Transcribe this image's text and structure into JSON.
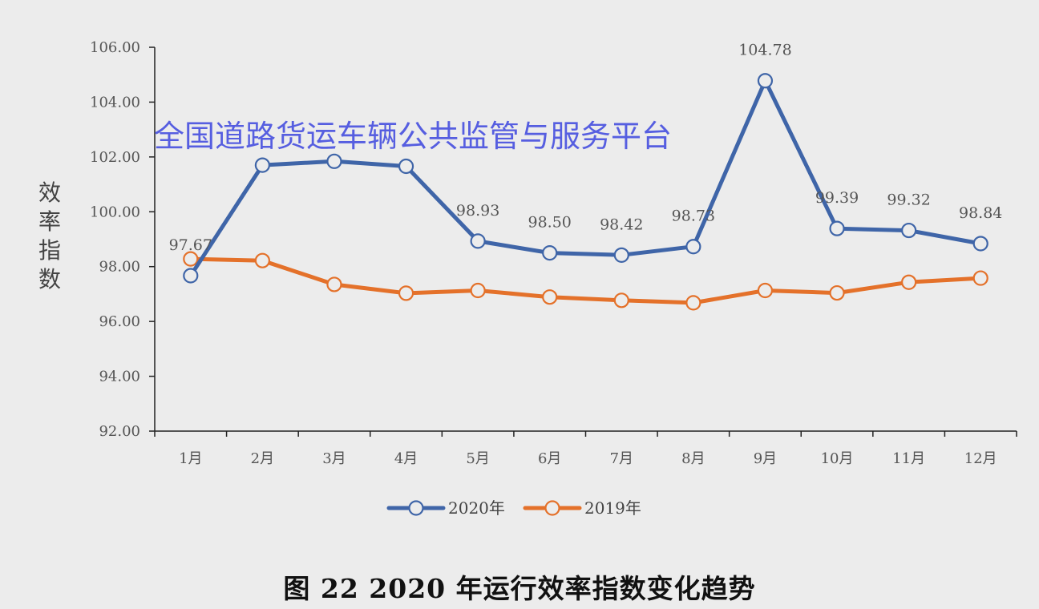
{
  "chart_data": {
    "type": "line",
    "categories": [
      "1月",
      "2月",
      "3月",
      "4月",
      "5月",
      "6月",
      "7月",
      "8月",
      "9月",
      "10月",
      "11月",
      "12月"
    ],
    "series": [
      {
        "name": "2020年",
        "color": "#3f65a8",
        "values": [
          97.67,
          101.7,
          101.84,
          101.66,
          98.93,
          98.5,
          98.42,
          98.73,
          104.78,
          99.39,
          99.32,
          98.84
        ],
        "labels": [
          "97.67",
          "",
          "",
          "",
          "98.93",
          "98.50",
          "98.42",
          "98.73",
          "104.78",
          "99.39",
          "99.32",
          "98.84"
        ]
      },
      {
        "name": "2019年",
        "color": "#e4712a",
        "values": [
          98.28,
          98.22,
          97.35,
          97.03,
          97.13,
          96.89,
          96.77,
          96.68,
          97.13,
          97.04,
          97.43,
          97.58
        ]
      }
    ],
    "y_ticks": [
      "92.00",
      "94.00",
      "96.00",
      "98.00",
      "100.00",
      "102.00",
      "104.00",
      "106.00"
    ],
    "ylim": [
      92,
      106
    ],
    "ylabel": "效率指数",
    "xlabel": "",
    "legend_position": "bottom",
    "grid": false
  },
  "watermark": "全国道路货运车辆公共监管与服务平台",
  "caption": "图 22  2020 年运行效率指数变化趋势"
}
